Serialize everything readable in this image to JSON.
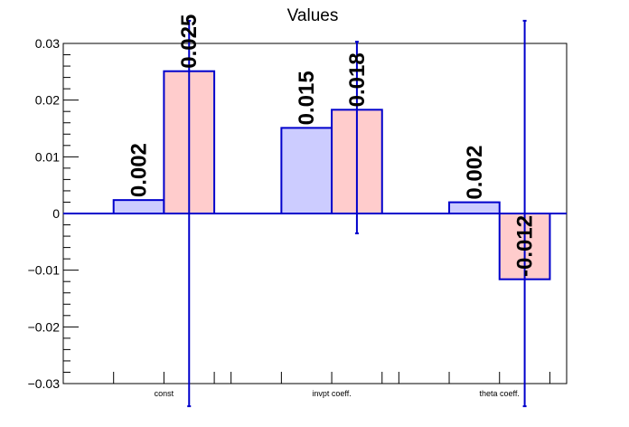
{
  "chart_data": {
    "type": "bar",
    "title": "Values",
    "xlabel": "",
    "ylabel": "",
    "categories": [
      "const",
      "invpt coeff.",
      "theta coeff."
    ],
    "series": [
      {
        "values": [
          0.00237,
          0.0151,
          0.00198
        ],
        "value_labels": [
          "0.002",
          "0.015",
          "0.002"
        ],
        "fill": "#ccccff",
        "stroke": "#0000cc",
        "error_low": [
          null,
          null,
          null
        ],
        "error_high": [
          null,
          null,
          null
        ]
      },
      {
        "values": [
          0.0251,
          0.0183,
          -0.0116
        ],
        "value_labels": [
          "0.025",
          "0.018",
          "-0.012"
        ],
        "fill": "#ffcccc",
        "stroke": "#0000cc",
        "error_low": [
          -0.034,
          -0.0035,
          -0.034
        ],
        "error_high": [
          0.034,
          0.0303,
          0.034
        ]
      }
    ],
    "ylim": [
      -0.03,
      0.03
    ],
    "yticks": [
      {
        "value": -0.03,
        "label": "−0.03"
      },
      {
        "value": -0.02,
        "label": "−0.02"
      },
      {
        "value": -0.01,
        "label": "−0.01"
      },
      {
        "value": 0,
        "label": "0"
      },
      {
        "value": 0.01,
        "label": "0.01"
      },
      {
        "value": 0.02,
        "label": "0.02"
      },
      {
        "value": 0.03,
        "label": "0.03"
      }
    ],
    "grid": false,
    "legend": "none",
    "colors": {
      "axis": "#000000",
      "zero_line": "#0000cc",
      "bar_stroke": "#0000cc",
      "series_1_fill": "#ccccff",
      "series_2_fill": "#ffcccc"
    }
  }
}
